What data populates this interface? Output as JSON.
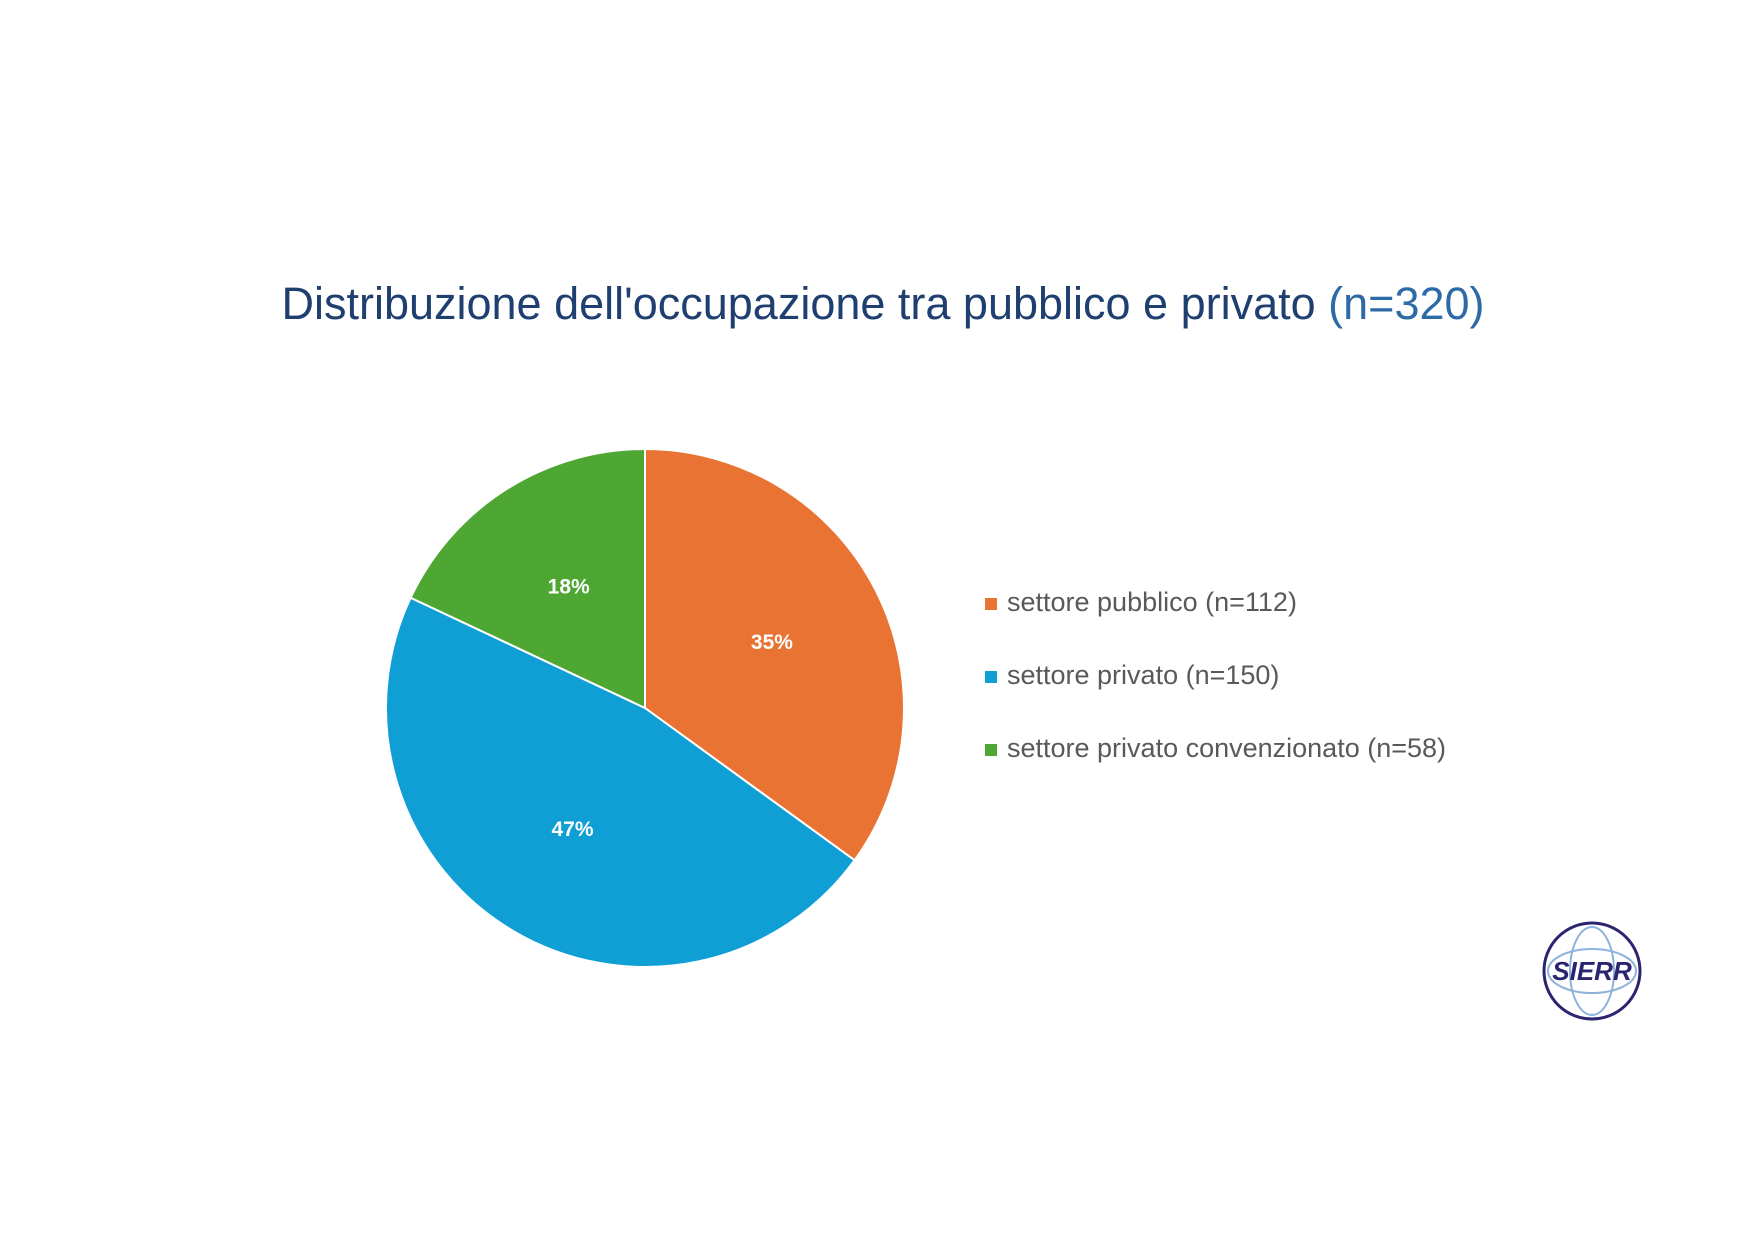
{
  "chart_data": {
    "type": "pie",
    "title": "Distribuzione dell'occupazione tra pubblico e privato",
    "title_note": "(n=320)",
    "categories": [
      "settore pubblico (n=112)",
      "settore privato (n=150)",
      "settore privato convenzionato (n=58)"
    ],
    "values": [
      35,
      47,
      18
    ],
    "value_labels": [
      "35%",
      "47%",
      "18%"
    ],
    "colors": [
      "#e87333",
      "#109fd4",
      "#4fa733"
    ],
    "legend": "right"
  },
  "logo_text": "SIERR"
}
